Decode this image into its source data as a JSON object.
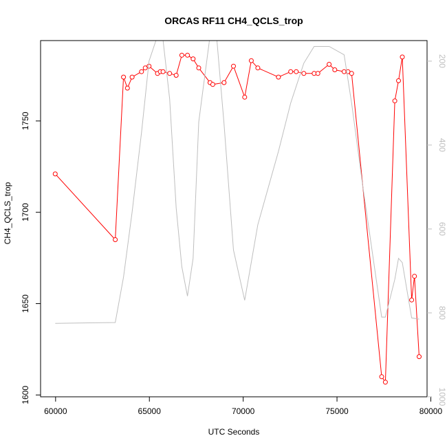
{
  "chart_data": {
    "type": "line",
    "title": "ORCAS RF11 CH4_QCLS_trop",
    "xlabel": "UTC Seconds",
    "ylabel": "CH4_QCLS_trop",
    "xlim": [
      59200,
      79800
    ],
    "ylim": [
      1599,
      1794
    ],
    "xticks": [
      60000,
      65000,
      70000,
      75000,
      80000
    ],
    "xtick_labels": [
      "60000",
      "65000",
      "70000",
      "75000",
      "80000"
    ],
    "yticks": [
      1600,
      1650,
      1700,
      1750
    ],
    "ytick_labels": [
      "1600",
      "1650",
      "1700",
      "1750"
    ],
    "y2lim": [
      1000,
      151
    ],
    "y2ticks": [
      200,
      400,
      600,
      800,
      1000
    ],
    "y2tick_labels": [
      "200",
      "400",
      "600",
      "800",
      "1000"
    ],
    "grid": false,
    "colors": {
      "primary": "#ff0000",
      "secondary": "#bebebe",
      "axis": "#000000"
    },
    "series": [
      {
        "axis": "left",
        "style": "line+points",
        "x": [
          59980,
          63180,
          63620,
          63830,
          64080,
          64580,
          64780,
          64980,
          65430,
          65580,
          65730,
          66080,
          66430,
          66730,
          67030,
          67330,
          67630,
          68230,
          68380,
          68980,
          69480,
          70080,
          70430,
          70780,
          71880,
          72530,
          72830,
          73230,
          73780,
          73980,
          74580,
          74880,
          75380,
          75580,
          75780,
          77380,
          77580,
          78080,
          78280,
          78480,
          78980,
          79130,
          79380
        ],
        "y": [
          1721,
          1685,
          1774,
          1768,
          1774,
          1777,
          1779,
          1780,
          1776,
          1777,
          1777,
          1776,
          1775,
          1786,
          1786,
          1784,
          1779,
          1771,
          1770,
          1771,
          1780,
          1763,
          1783,
          1779,
          1774,
          1777,
          1777,
          1776,
          1776,
          1776,
          1781,
          1778,
          1777,
          1777,
          1776,
          1610,
          1607,
          1761,
          1772,
          1785,
          1652,
          1665,
          1621
        ]
      },
      {
        "axis": "right",
        "style": "line",
        "x": [
          59980,
          63180,
          63620,
          64080,
          64580,
          64980,
          65430,
          65730,
          66080,
          66430,
          66730,
          67030,
          67330,
          67630,
          68230,
          68580,
          68980,
          69480,
          70080,
          70780,
          71880,
          72530,
          73230,
          73780,
          74580,
          75380,
          75780,
          76380,
          77380,
          77580,
          78080,
          78280,
          78480,
          78980,
          79380
        ],
        "y": [
          825,
          823,
          715,
          560,
          370,
          200,
          140,
          150,
          290,
          550,
          690,
          760,
          670,
          345,
          140,
          140,
          350,
          650,
          770,
          590,
          415,
          300,
          205,
          165,
          165,
          185,
          300,
          500,
          810,
          810,
          720,
          670,
          680,
          812,
          815
        ]
      }
    ]
  }
}
